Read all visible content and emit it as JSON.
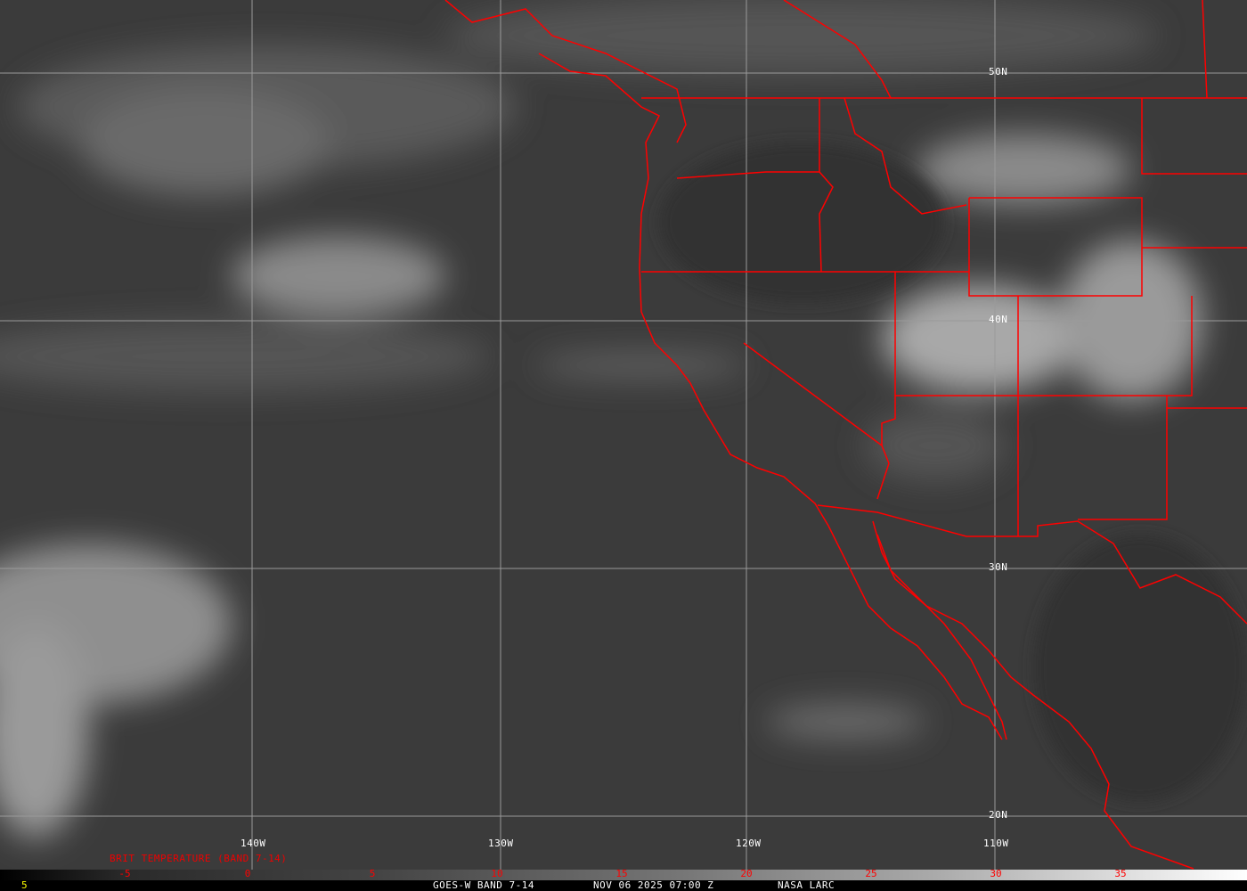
{
  "map": {
    "lat_labels": [
      "50N",
      "40N",
      "30N",
      "20N"
    ],
    "lon_labels": [
      "140W",
      "130W",
      "120W",
      "110W"
    ],
    "boundary_color": "#ff0000",
    "grid_color": "#9a9a9a"
  },
  "colorbar": {
    "title": "BRIT TEMPERATURE (BAND 7-14)",
    "ticks": [
      "-5",
      "0",
      "5",
      "10",
      "15",
      "20",
      "25",
      "30",
      "35"
    ],
    "tick_color": "#ff0000"
  },
  "footer": {
    "left_value": "5",
    "satellite": "GOES-W BAND 7-14",
    "datetime": "NOV 06 2025 07:00 Z",
    "source": "NASA LARC"
  }
}
